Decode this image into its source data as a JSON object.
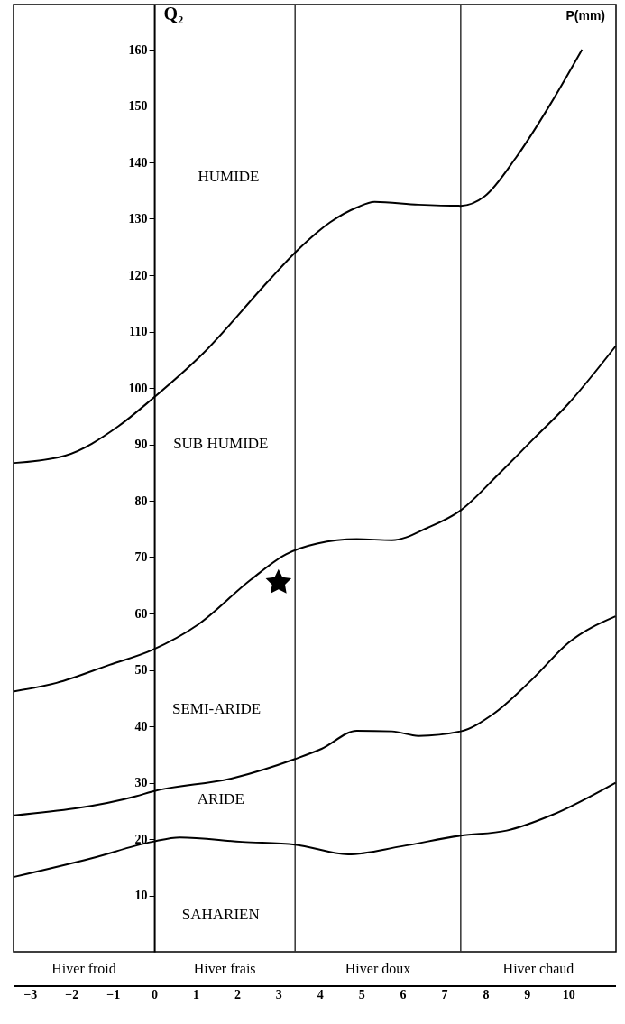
{
  "chart_data": {
    "type": "line",
    "ylabel": "Q₂",
    "xlim": [
      -3.4,
      11.15
    ],
    "ylim": [
      0,
      168
    ],
    "xticks": [
      -3,
      -2,
      -1,
      0,
      1,
      2,
      3,
      4,
      5,
      6,
      7,
      8,
      9,
      10
    ],
    "yticks": [
      10,
      20,
      30,
      40,
      50,
      60,
      70,
      80,
      90,
      100,
      110,
      120,
      130,
      140,
      150,
      160
    ],
    "line_style": "solid",
    "series": [
      {
        "color": "#000000",
        "x": [
          -3.38,
          -2.15,
          -0.87,
          -0.06,
          1.16,
          2.76,
          3.4,
          4.25,
          4.89,
          5.32,
          6.38,
          7.4,
          7.98,
          8.73,
          9.58,
          10.33
        ],
        "values": [
          86.7,
          88,
          93.2,
          98,
          106,
          119,
          124,
          129.4,
          132,
          133,
          132.5,
          132.3,
          134,
          140.8,
          150.5,
          160
        ]
      },
      {
        "color": "#000000",
        "x": [
          -3.38,
          -2.36,
          -1.08,
          -0.06,
          1.05,
          2.33,
          3.18,
          3.93,
          4.89,
          5.74,
          6.6,
          7.4,
          8.3,
          9.15,
          10,
          11.14
        ],
        "values": [
          46.2,
          47.7,
          50.9,
          53.5,
          58,
          66,
          70.5,
          72.4,
          73.2,
          73,
          75.2,
          78.3,
          84.6,
          90.9,
          97.2,
          107.4
        ]
      },
      {
        "color": "#000000",
        "x": [
          -3.38,
          -0.44,
          -0.06,
          1.9,
          3.4,
          4.04,
          4.89,
          5.74,
          6.38,
          7.4,
          8.19,
          9.15,
          10,
          11.14
        ],
        "values": [
          24.2,
          27.6,
          28.4,
          30.8,
          34.2,
          36,
          39.2,
          39.1,
          38.3,
          39.1,
          42.2,
          48.5,
          54.8,
          59.5
        ]
      },
      {
        "color": "#000000",
        "x": [
          -3.38,
          -1.51,
          -0.06,
          0.62,
          2.12,
          3.4,
          4.68,
          5.96,
          7.4,
          8.51,
          9.58,
          11.14
        ],
        "values": [
          13.3,
          16.6,
          19.5,
          20.3,
          19.5,
          19,
          17.3,
          18.7,
          20.6,
          21.5,
          24.2,
          30
        ]
      },
      {
        "type": "scatter",
        "marker": "star",
        "color": "#000000",
        "x": [
          3.0
        ],
        "values": [
          65.5
        ]
      }
    ],
    "ref_lines": [
      {
        "axis": "x",
        "value": 3.4,
        "color": "#333333"
      },
      {
        "axis": "x",
        "value": 7.4,
        "color": "#333333"
      }
    ],
    "annotations": [
      "HUMIDE",
      "SUB HUMIDE",
      "SEMI-ARIDE",
      "ARIDE",
      "SAHARIEN",
      "P(mm)",
      "Hiver froid",
      "Hiver frais",
      "Hiver doux",
      "Hiver chaud"
    ]
  }
}
